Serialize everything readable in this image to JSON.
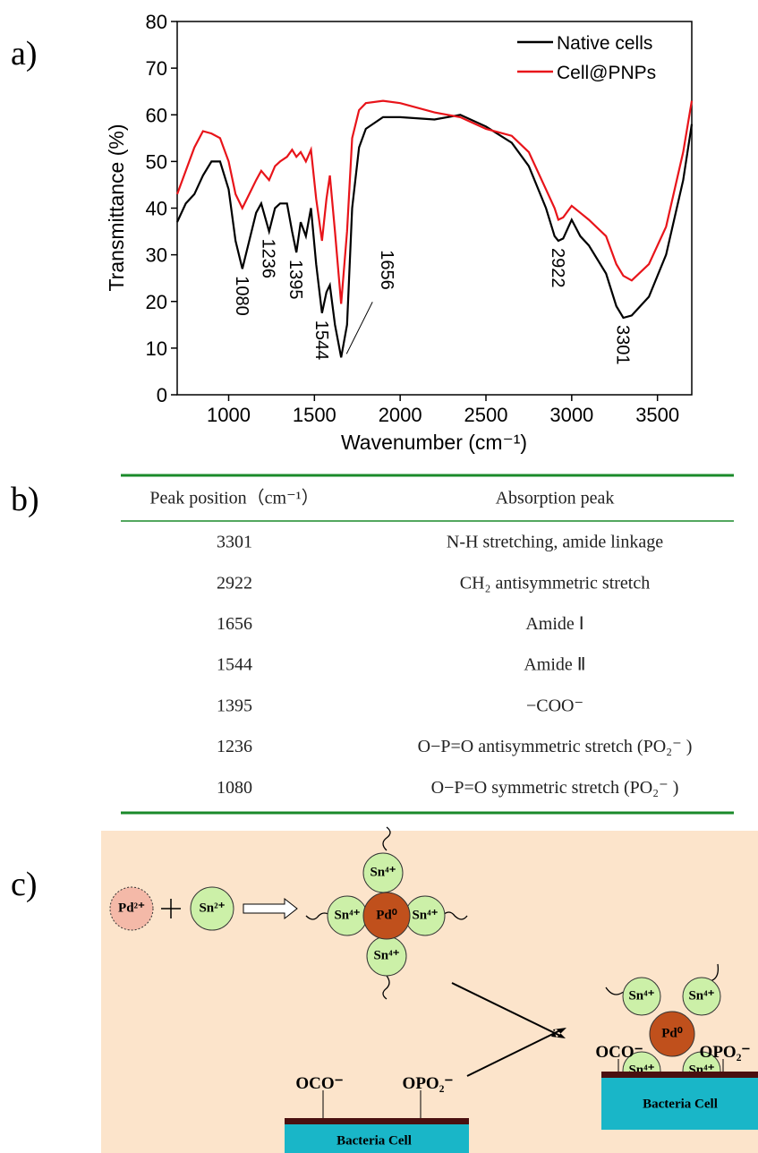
{
  "panels": [
    "a)",
    "b)",
    "c)"
  ],
  "chart_data": {
    "type": "line",
    "xlabel": "Wavenumber (cm⁻¹)",
    "ylabel": "Transmittance (%)",
    "x": [
      700,
      750,
      800,
      850,
      900,
      950,
      1000,
      1040,
      1080,
      1120,
      1160,
      1190,
      1236,
      1270,
      1300,
      1340,
      1370,
      1395,
      1420,
      1450,
      1480,
      1510,
      1544,
      1570,
      1590,
      1620,
      1656,
      1690,
      1720,
      1760,
      1800,
      1900,
      2000,
      2200,
      2350,
      2500,
      2650,
      2750,
      2850,
      2900,
      2922,
      2950,
      3000,
      3050,
      3100,
      3200,
      3260,
      3301,
      3350,
      3450,
      3550,
      3650,
      3700
    ],
    "series": [
      {
        "name": "Native cells",
        "color": "#000000",
        "values": [
          37,
          41,
          43,
          47,
          50,
          50,
          44,
          33,
          27,
          33,
          39,
          41,
          35,
          40,
          41,
          41,
          35,
          30.5,
          37,
          34,
          40,
          28,
          17.5,
          22,
          23.5,
          15,
          8,
          15,
          40,
          53,
          57,
          59.5,
          59.5,
          59,
          60,
          57.5,
          54,
          49,
          40,
          34,
          33,
          33.5,
          37.5,
          34,
          32,
          26,
          19,
          16.5,
          17,
          21,
          30,
          46,
          58
        ]
      },
      {
        "name": "Cell@PNPs",
        "color": "#e8141a",
        "values": [
          43,
          48,
          53,
          56.5,
          56,
          55,
          50,
          43,
          40,
          43,
          46,
          48,
          46,
          49,
          50,
          51,
          52.5,
          51,
          52,
          50,
          52.5,
          42,
          33,
          42,
          47,
          35,
          19.5,
          35,
          55,
          61,
          62.5,
          63,
          62.5,
          60.5,
          59.5,
          57,
          55.5,
          52,
          44,
          40,
          37.5,
          38,
          40.5,
          39,
          37.5,
          34,
          28,
          25.5,
          24.5,
          28,
          36,
          52,
          63
        ]
      }
    ],
    "annotations": [
      {
        "text": "1080",
        "x": 1080
      },
      {
        "text": "1236",
        "x": 1236
      },
      {
        "text": "1395",
        "x": 1395
      },
      {
        "text": "1544",
        "x": 1544
      },
      {
        "text": "1656",
        "x": 1656
      },
      {
        "text": "2922",
        "x": 2922
      },
      {
        "text": "3301",
        "x": 3301
      }
    ],
    "xlim": [
      700,
      3700
    ],
    "ylim": [
      0,
      80
    ],
    "xticks": [
      1000,
      1500,
      2000,
      2500,
      3000,
      3500
    ],
    "yticks": [
      0,
      10,
      20,
      30,
      40,
      50,
      60,
      70,
      80
    ],
    "legend": "upper right"
  },
  "table": {
    "header": [
      "Peak position（cm⁻¹）",
      "Absorption peak"
    ],
    "rows": [
      [
        "3301",
        "N-H stretching, amide linkage"
      ],
      [
        "2922",
        "CH₂ antisymmetric stretch"
      ],
      [
        "1656",
        "Amide Ⅰ"
      ],
      [
        "1544",
        "Amide Ⅱ"
      ],
      [
        "1395",
        "−COO⁻"
      ],
      [
        "1236",
        "O−P=O antisymmetric stretch (PO₂⁻ )"
      ],
      [
        "1080",
        "O−P=O symmetric stretch (PO₂⁻ )"
      ]
    ]
  },
  "diagram": {
    "reactants": [
      "Pd²⁺",
      "Sn²⁺"
    ],
    "nanoparticle": {
      "core": "Pd⁰",
      "shell": [
        "Sn⁴⁺",
        "Sn⁴⁺",
        "Sn⁴⁺",
        "Sn⁴⁺"
      ]
    },
    "free_cell": {
      "groups": [
        "OCO⁻",
        "OPO₂⁻"
      ],
      "label": "Bacteria Cell"
    },
    "bound_nanoparticle": {
      "core": "Pd⁰",
      "shell": [
        "Sn⁴⁺",
        "Sn⁴⁺",
        "Sn⁴⁺",
        "Sn⁴⁺"
      ]
    },
    "bound_cell": {
      "groups": [
        "OCO⁻",
        "OPO₂⁻"
      ],
      "label": "Bacteria Cell"
    }
  }
}
